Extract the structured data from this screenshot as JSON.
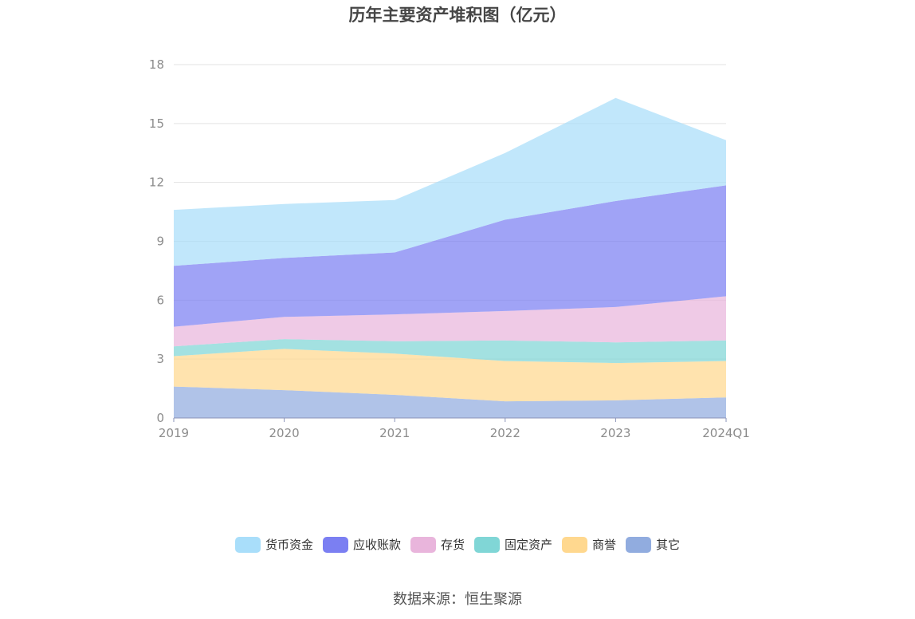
{
  "chart_data": {
    "type": "area",
    "stacked": true,
    "title": "历年主要资产堆积图（亿元）",
    "categories": [
      "2019",
      "2020",
      "2021",
      "2022",
      "2023",
      "2024Q1"
    ],
    "ylim": [
      0,
      18
    ],
    "yticks": [
      0,
      3,
      6,
      9,
      12,
      15,
      18
    ],
    "grid": true,
    "legend_position": "bottom",
    "series": [
      {
        "name": "其它",
        "color": "#91acdf",
        "values": [
          1.6,
          1.42,
          1.18,
          0.85,
          0.9,
          1.05
        ]
      },
      {
        "name": "商誉",
        "color": "#ffd88f",
        "values": [
          1.55,
          2.1,
          2.1,
          2.05,
          1.9,
          1.85
        ]
      },
      {
        "name": "固定资产",
        "color": "#80d6d6",
        "values": [
          0.5,
          0.5,
          0.63,
          1.05,
          1.05,
          1.05
        ]
      },
      {
        "name": "存货",
        "color": "#e9b5dc",
        "values": [
          1.0,
          1.13,
          1.37,
          1.5,
          1.8,
          2.25
        ]
      },
      {
        "name": "应收账款",
        "color": "#7b7ff2",
        "values": [
          3.1,
          3.0,
          3.15,
          4.65,
          5.4,
          5.65
        ]
      },
      {
        "name": "货币资金",
        "color": "#a9defa",
        "values": [
          2.85,
          2.75,
          2.67,
          3.4,
          5.25,
          2.3
        ]
      }
    ]
  },
  "source": "数据来源：恒生聚源"
}
